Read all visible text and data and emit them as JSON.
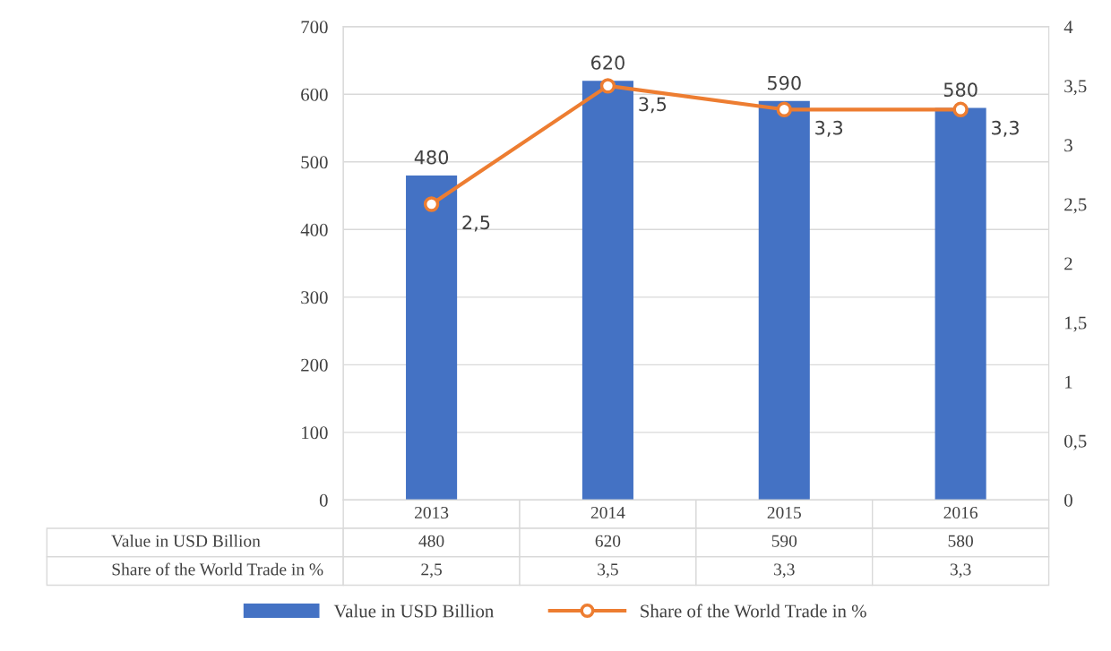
{
  "chart_data": {
    "type": "bar",
    "categories": [
      "2013",
      "2014",
      "2015",
      "2016"
    ],
    "series": [
      {
        "name": "Value in USD Billion",
        "type": "bar",
        "color": "#4472c4",
        "values": [
          480,
          620,
          590,
          580
        ],
        "value_labels": [
          "480",
          "620",
          "590",
          "580"
        ]
      },
      {
        "name": "Share of the World Trade in %",
        "type": "line",
        "axis": "y2",
        "color": "#ed7d31",
        "marker": "circle",
        "values": [
          2.5,
          3.5,
          3.3,
          3.3
        ],
        "value_labels": [
          "2,5",
          "3,5",
          "3,3",
          "3,3"
        ]
      }
    ],
    "ylim": [
      0,
      700
    ],
    "yticks": [
      0,
      100,
      200,
      300,
      400,
      500,
      600,
      700
    ],
    "y2lim": [
      0,
      4
    ],
    "y2ticks": [
      0,
      {
        "value": 0.5,
        "label": "0,5"
      },
      1,
      {
        "value": 1.5,
        "label": "1,5"
      },
      2,
      {
        "value": 2.5,
        "label": "2,5"
      },
      3,
      {
        "value": 3.5,
        "label": "3,5"
      },
      4
    ],
    "grid": "y",
    "legend": "bottom",
    "data_labels": true
  }
}
